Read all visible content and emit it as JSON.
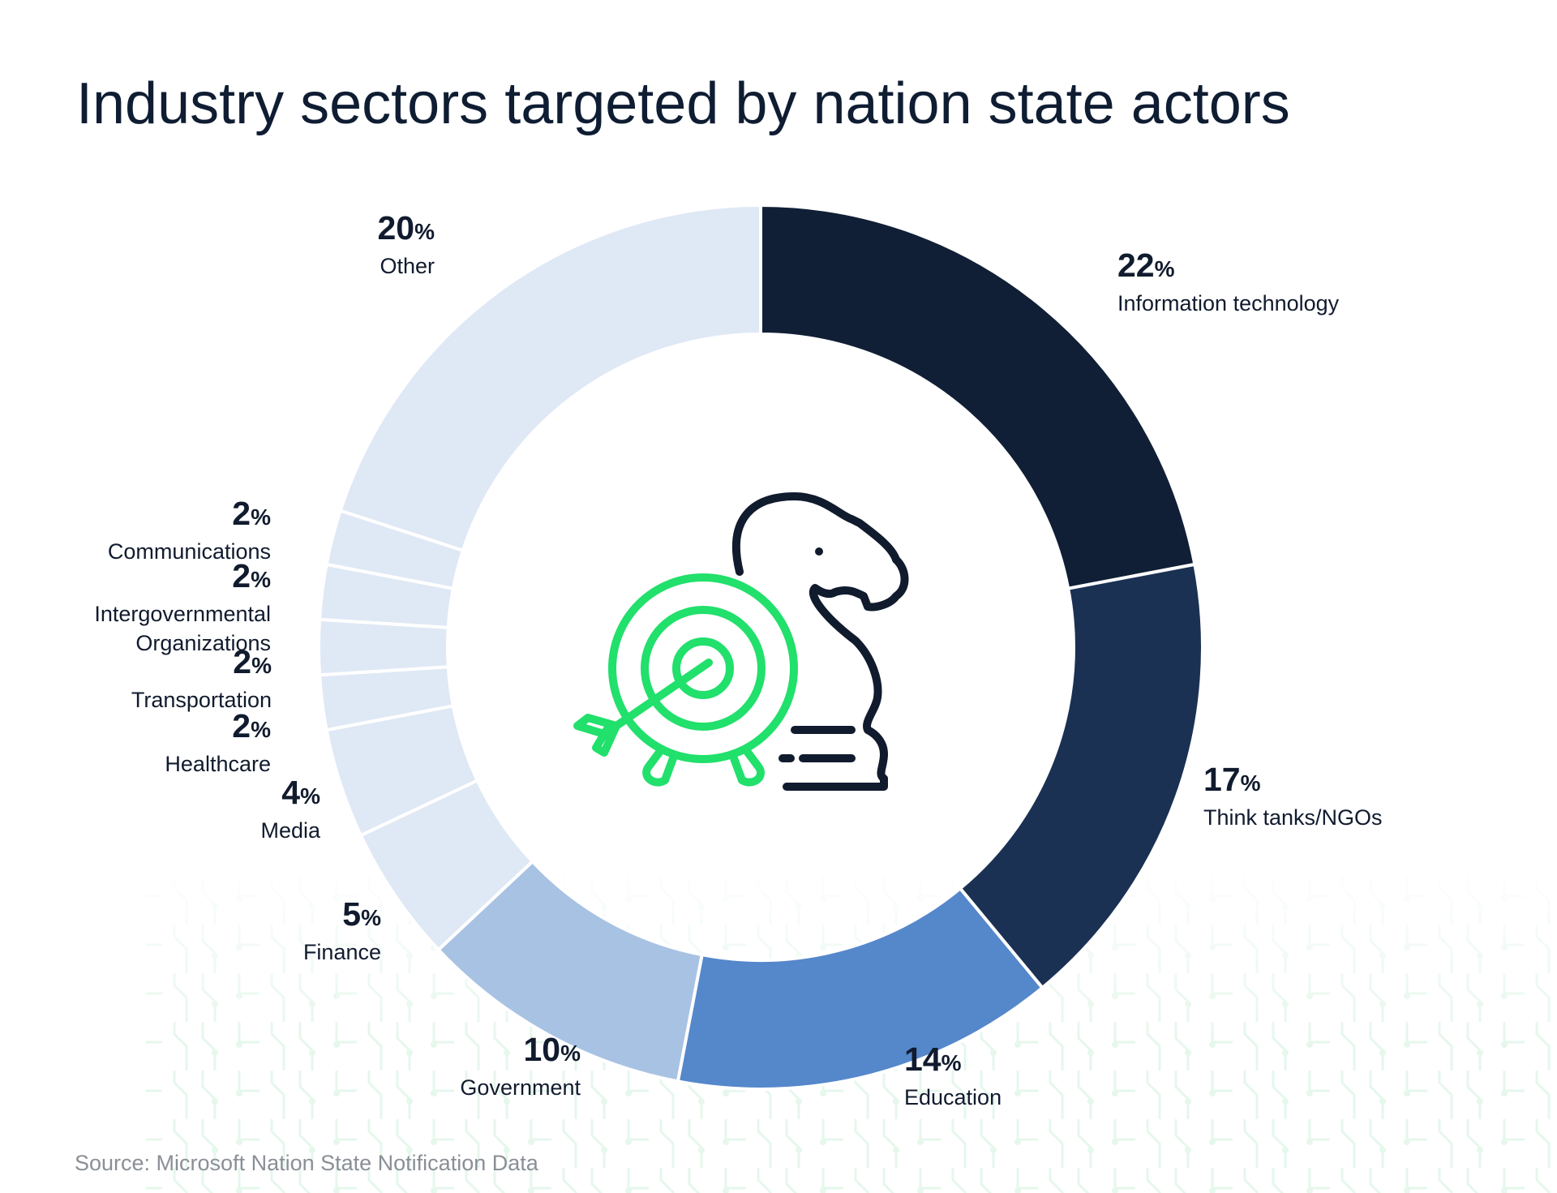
{
  "chart_data": {
    "type": "pie",
    "title": "Industry sectors targeted by nation state actors",
    "categories": [
      "Information technology",
      "Think tanks/NGOs",
      "Education",
      "Government",
      "Finance",
      "Media",
      "Healthcare",
      "Transportation",
      "Intergovernmental Organizations",
      "Communications",
      "Other"
    ],
    "values": [
      22,
      17,
      14,
      10,
      5,
      4,
      2,
      2,
      2,
      2,
      20
    ],
    "unit": "%",
    "colors": [
      "#101f36",
      "#1b3153",
      "#5587cb",
      "#a8c2e3",
      "#dfe8f5",
      "#dfe8f5",
      "#dfe8f5",
      "#dfe8f5",
      "#dfe8f5",
      "#dfe8f5",
      "#dfe8f5"
    ],
    "source": "Source: Microsoft Nation State Notification Data"
  },
  "icon": {
    "name": "target-knight-icon",
    "accent": "#21e06b",
    "dark": "#111b2e"
  }
}
